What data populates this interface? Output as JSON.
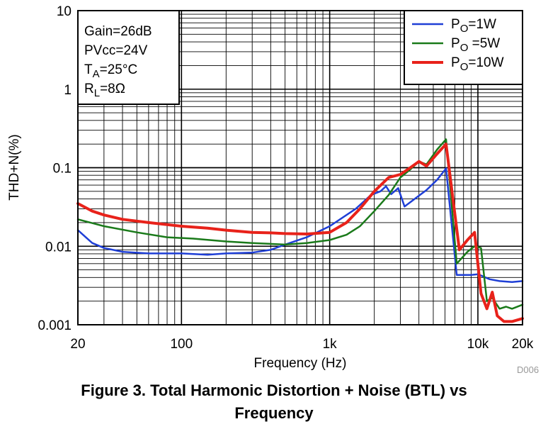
{
  "chart_data": {
    "type": "line",
    "xlabel": "Frequency (Hz)",
    "ylabel": "THD+N(%)",
    "x_scale": "log",
    "y_scale": "log",
    "xlim": [
      20,
      20000
    ],
    "ylim": [
      0.001,
      10
    ],
    "x_tick_values": [
      20,
      100,
      1000,
      10000,
      20000
    ],
    "x_tick_labels": [
      "20",
      "100",
      "1k",
      "10k",
      "20k"
    ],
    "y_tick_values": [
      10,
      1,
      0.1,
      0.01,
      0.001
    ],
    "y_tick_labels": [
      "10",
      "1",
      "0.1",
      "0.01",
      "0.001"
    ],
    "grid": true,
    "legend_position": "top-right",
    "conditions": [
      "Gain=26dB",
      "PVcc=24V",
      "TA=25°C",
      "RL=8Ω"
    ],
    "series": [
      {
        "name": "PO=1W",
        "color": "#1f3fd6",
        "x": [
          20,
          25,
          30,
          40,
          60,
          100,
          150,
          200,
          300,
          400,
          500,
          700,
          1000,
          1500,
          1900,
          2200,
          2400,
          2600,
          2900,
          3200,
          4000,
          4500,
          5300,
          6100,
          7200,
          9000,
          10000,
          12000,
          14000,
          17000,
          20000
        ],
        "y": [
          0.016,
          0.011,
          0.0095,
          0.0085,
          0.0081,
          0.0081,
          0.0078,
          0.0081,
          0.0083,
          0.009,
          0.0105,
          0.013,
          0.018,
          0.03,
          0.045,
          0.05,
          0.058,
          0.046,
          0.055,
          0.032,
          0.044,
          0.052,
          0.07,
          0.098,
          0.0043,
          0.0043,
          0.0044,
          0.0038,
          0.0036,
          0.0035,
          0.0036
        ]
      },
      {
        "name": "PO=5W",
        "color": "#1a7a1a",
        "x": [
          20,
          30,
          50,
          80,
          120,
          200,
          300,
          500,
          700,
          1000,
          1300,
          1600,
          2000,
          2500,
          3000,
          3500,
          4000,
          4500,
          5300,
          6100,
          7200,
          8500,
          9500,
          10500,
          11500,
          12500,
          14000,
          15500,
          17000,
          20000
        ],
        "y": [
          0.022,
          0.018,
          0.015,
          0.013,
          0.0125,
          0.0115,
          0.011,
          0.0105,
          0.011,
          0.012,
          0.014,
          0.018,
          0.028,
          0.045,
          0.075,
          0.095,
          0.12,
          0.11,
          0.17,
          0.23,
          0.006,
          0.0085,
          0.01,
          0.0095,
          0.002,
          0.0022,
          0.0016,
          0.0017,
          0.0016,
          0.0018
        ]
      },
      {
        "name": "PO=10W",
        "color": "#e8221a",
        "x": [
          20,
          25,
          30,
          40,
          60,
          100,
          150,
          200,
          300,
          400,
          500,
          700,
          1000,
          1300,
          1600,
          2000,
          2500,
          3000,
          3500,
          4000,
          4500,
          5300,
          6100,
          7500,
          8500,
          9500,
          10500,
          11500,
          12500,
          13500,
          15000,
          17000,
          20000
        ],
        "y": [
          0.035,
          0.028,
          0.025,
          0.022,
          0.02,
          0.018,
          0.017,
          0.016,
          0.015,
          0.0148,
          0.0145,
          0.0143,
          0.015,
          0.02,
          0.03,
          0.05,
          0.075,
          0.082,
          0.1,
          0.12,
          0.105,
          0.15,
          0.2,
          0.009,
          0.012,
          0.015,
          0.0025,
          0.0016,
          0.0026,
          0.0013,
          0.0011,
          0.0011,
          0.0012
        ]
      }
    ]
  },
  "legend": {
    "items": [
      {
        "main": "P",
        "sub": "O",
        "rest": "=1W",
        "color": "#1f3fd6"
      },
      {
        "main": "P",
        "sub": "O",
        "rest": " =5W",
        "color": "#1a7a1a"
      },
      {
        "main": "P",
        "sub": "O",
        "rest": "=10W",
        "color": "#e8221a"
      }
    ]
  },
  "conditions_box": {
    "lines": [
      {
        "main": "Gain=26dB",
        "sub": "",
        "rest": ""
      },
      {
        "main": "PVcc=24V",
        "sub": "",
        "rest": ""
      },
      {
        "main": "T",
        "sub": "A",
        "rest": "=25°C"
      },
      {
        "main": "R",
        "sub": "L",
        "rest": "=8Ω"
      }
    ]
  },
  "figure_id": "D006",
  "caption": {
    "line1": "Figure 3. Total Harmonic Distortion + Noise (BTL) vs",
    "line2": "Frequency"
  }
}
